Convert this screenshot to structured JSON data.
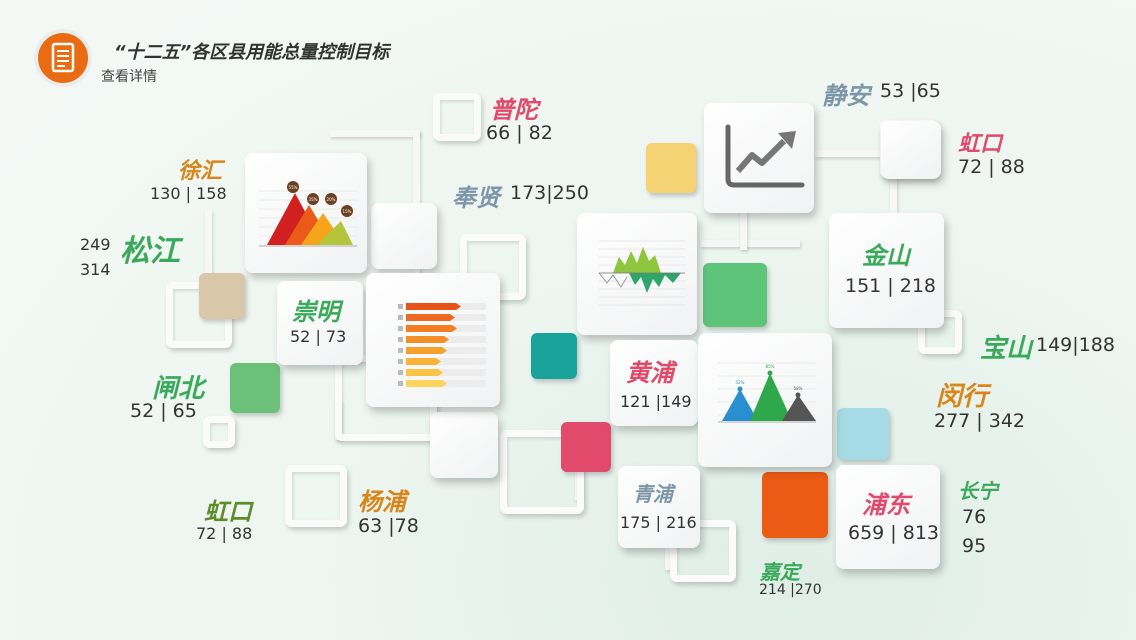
{
  "header": {
    "title": "“十二五”各区县用能总量控制目标",
    "subtitle": "查看详情",
    "icon": "document-icon"
  },
  "colors": {
    "orange": "#e96b12",
    "pink": "#e24a6b",
    "green": "#3aaa5a",
    "gray_blue": "#7d97a9",
    "amber": "#d8861c",
    "olive": "#5d8c2a"
  },
  "districts": {
    "putuo": {
      "name": "普陀",
      "value": "66 | 82"
    },
    "jingan": {
      "name": "静安",
      "value": "53 |65"
    },
    "hongkou_top": {
      "name": "虹口",
      "value": "72 | 88"
    },
    "xuhui": {
      "name": "徐汇",
      "value": "130 | 158"
    },
    "fengxian": {
      "name": "奉贤",
      "value": "173|250"
    },
    "songjiang": {
      "name": "松江",
      "value1": "249",
      "value2": "314"
    },
    "jinshan": {
      "name": "金山",
      "value": "151 | 218"
    },
    "chongming": {
      "name": "崇明",
      "value": "52 | 73"
    },
    "baoshan": {
      "name": "宝山",
      "value": "149|188"
    },
    "zhabei": {
      "name": "闸北",
      "value": "52 | 65"
    },
    "huangpu": {
      "name": "黄浦",
      "value": "121 |149"
    },
    "minhang": {
      "name": "闵行",
      "value": "277 | 342"
    },
    "hongkou_bottom": {
      "name": "虹口",
      "value": "72 | 88"
    },
    "yangpu": {
      "name": "杨浦",
      "value": "63 |78"
    },
    "qingpu": {
      "name": "青浦",
      "value": "175 | 216"
    },
    "pudong": {
      "name": "浦东",
      "value": "659 | 813"
    },
    "changning": {
      "name": "长宁",
      "value1": "76",
      "value2": "95"
    },
    "jiading": {
      "name": "嘉定",
      "value": "214  |270"
    }
  },
  "mini_charts": {
    "pyramid_labels": [
      "55%",
      "35%",
      "20%",
      "15%"
    ],
    "peak_labels": [
      "52%",
      "85%",
      "58%"
    ]
  }
}
